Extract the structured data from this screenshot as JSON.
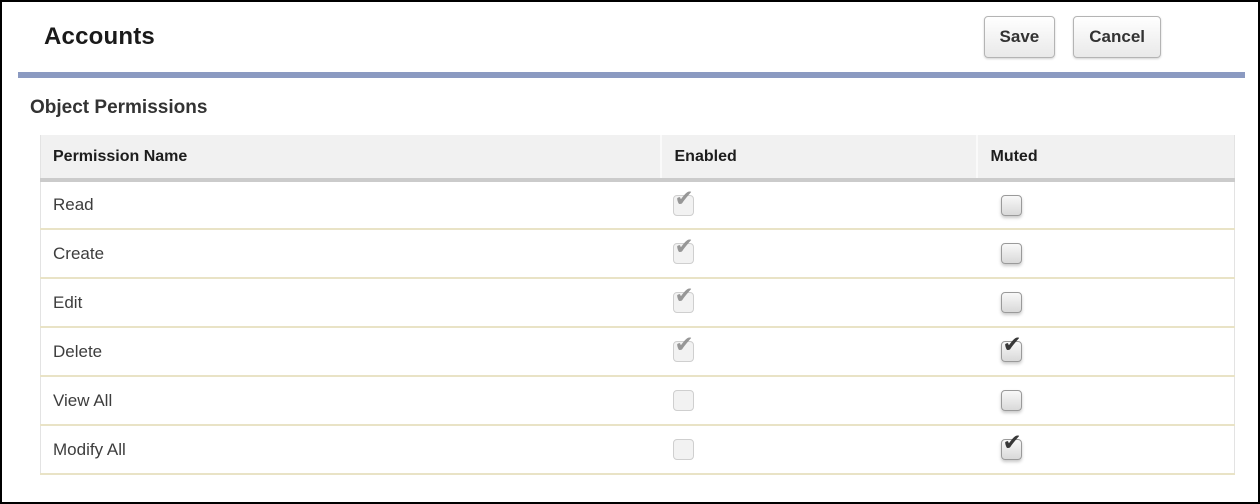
{
  "header": {
    "title": "Accounts",
    "save_label": "Save",
    "cancel_label": "Cancel"
  },
  "section_heading": "Object Permissions",
  "table": {
    "columns": [
      {
        "label": "Permission Name"
      },
      {
        "label": "Enabled"
      },
      {
        "label": "Muted"
      }
    ],
    "rows": [
      {
        "name": "Read",
        "enabled": {
          "checked": true,
          "disabled": true
        },
        "muted": {
          "checked": false,
          "disabled": false
        }
      },
      {
        "name": "Create",
        "enabled": {
          "checked": true,
          "disabled": true
        },
        "muted": {
          "checked": false,
          "disabled": false
        }
      },
      {
        "name": "Edit",
        "enabled": {
          "checked": true,
          "disabled": true
        },
        "muted": {
          "checked": false,
          "disabled": false
        }
      },
      {
        "name": "Delete",
        "enabled": {
          "checked": true,
          "disabled": true
        },
        "muted": {
          "checked": true,
          "disabled": false
        }
      },
      {
        "name": "View All",
        "enabled": {
          "checked": false,
          "disabled": true
        },
        "muted": {
          "checked": false,
          "disabled": false
        }
      },
      {
        "name": "Modify All",
        "enabled": {
          "checked": false,
          "disabled": true
        },
        "muted": {
          "checked": true,
          "disabled": false
        }
      }
    ]
  },
  "icons": {
    "checkmark": "✔"
  },
  "colors": {
    "divider_blue": "#8b9ac1",
    "row_divider": "#e9e3c6",
    "header_bg": "#f1f1f1",
    "header_rule": "#cbcbcb",
    "enabled_check": "#979797",
    "muted_check": "#383838"
  }
}
